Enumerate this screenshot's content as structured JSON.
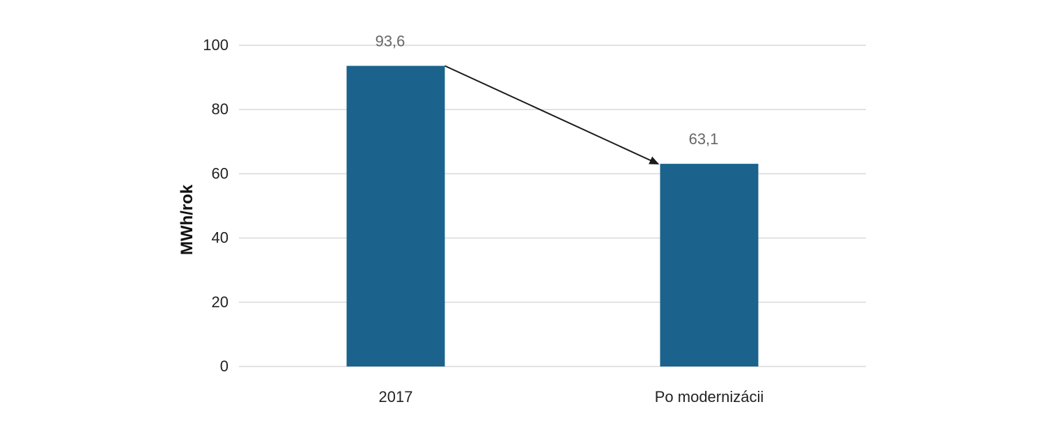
{
  "chart_data": {
    "type": "bar",
    "categories": [
      "2017",
      "Po modernizácii"
    ],
    "values": [
      93.6,
      63.1
    ],
    "data_labels": [
      "93,6",
      "63,1"
    ],
    "title": "",
    "xlabel": "",
    "ylabel": "MWh/rok",
    "ylim": [
      0,
      100
    ],
    "yticks": [
      0,
      20,
      40,
      60,
      80,
      100
    ],
    "ytick_labels": [
      "0",
      "20",
      "40",
      "60",
      "80",
      "100"
    ],
    "grid": true,
    "legend": "none",
    "annotation": "arrow from top of first bar to top of second bar",
    "colors": {
      "bar": "#1b638c",
      "grid": "#d9d9d9",
      "arrow": "#1a1a1a"
    }
  }
}
